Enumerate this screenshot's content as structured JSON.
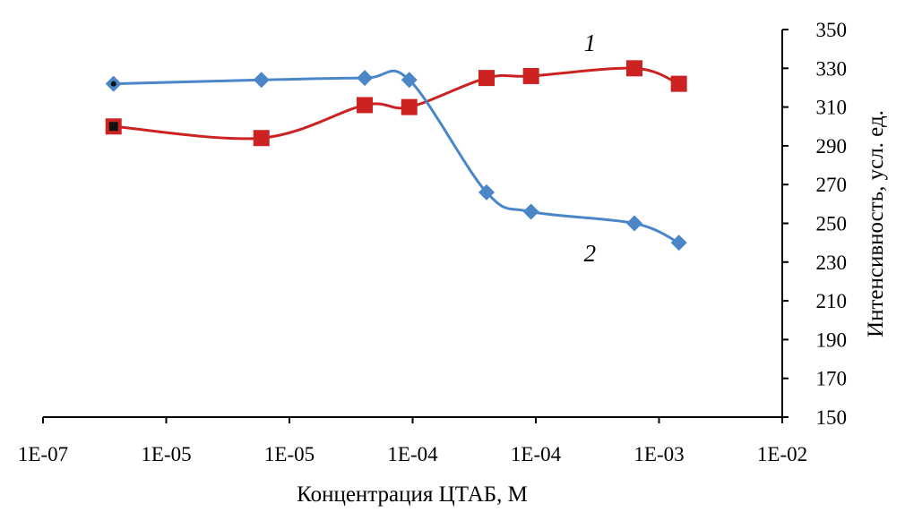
{
  "chart_data": {
    "type": "line",
    "xlabel": "Концентрация ЦТАБ, М",
    "ylabel": "Интенсивность, усл. ед.",
    "y_axis_side": "right",
    "x_scale": "log",
    "x_ticks": [
      "1E-07",
      "1E-05",
      "1E-05",
      "1E-04",
      "1E-04",
      "1E-03",
      "1E-02"
    ],
    "y_ticks": [
      150,
      170,
      190,
      210,
      230,
      250,
      270,
      290,
      310,
      330,
      350
    ],
    "ylim": [
      150,
      350
    ],
    "grid": false,
    "series": [
      {
        "name": "1",
        "color": "#CC2222",
        "marker": "square",
        "x": [
          3e-07,
          3e-06,
          1.5e-05,
          3e-05,
          0.0001,
          0.0002,
          0.001,
          0.002
        ],
        "values": [
          300,
          294,
          311,
          310,
          325,
          326,
          330,
          322
        ]
      },
      {
        "name": "2",
        "color": "#4A86C8",
        "marker": "diamond",
        "x": [
          3e-07,
          3e-06,
          1.5e-05,
          3e-05,
          0.0001,
          0.0002,
          0.001,
          0.002
        ],
        "values": [
          322,
          324,
          325,
          324,
          266,
          256,
          250,
          240
        ]
      }
    ]
  }
}
